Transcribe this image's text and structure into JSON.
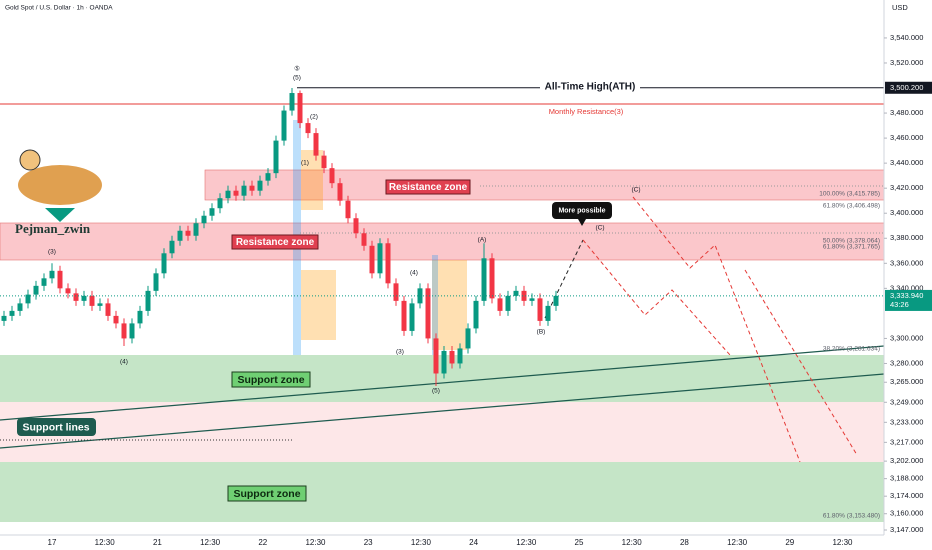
{
  "header": {
    "symbol": "Gold Spot / U.S. Dollar · 1h · OANDA",
    "currency": "USD"
  },
  "chart_data": {
    "type": "candlestick",
    "up_color": "#089981",
    "down_color": "#f23645",
    "grid": false,
    "candles": [
      [
        3314,
        3322,
        3310,
        3318
      ],
      [
        3318,
        3326,
        3314,
        3322
      ],
      [
        3322,
        3332,
        3318,
        3328
      ],
      [
        3328,
        3339,
        3324,
        3335
      ],
      [
        3335,
        3346,
        3331,
        3342
      ],
      [
        3342,
        3352,
        3338,
        3348
      ],
      [
        3348,
        3360,
        3344,
        3354
      ],
      [
        3354,
        3358,
        3336,
        3340
      ],
      [
        3340,
        3344,
        3332,
        3336
      ],
      [
        3336,
        3340,
        3326,
        3330
      ],
      [
        3330,
        3338,
        3326,
        3334
      ],
      [
        3334,
        3338,
        3322,
        3326
      ],
      [
        3326,
        3332,
        3322,
        3328
      ],
      [
        3328,
        3332,
        3314,
        3318
      ],
      [
        3318,
        3322,
        3308,
        3312
      ],
      [
        3312,
        3316,
        3294,
        3300
      ],
      [
        3300,
        3316,
        3296,
        3312
      ],
      [
        3312,
        3326,
        3308,
        3322
      ],
      [
        3322,
        3342,
        3318,
        3338
      ],
      [
        3338,
        3356,
        3334,
        3352
      ],
      [
        3352,
        3372,
        3348,
        3368
      ],
      [
        3368,
        3382,
        3364,
        3378
      ],
      [
        3378,
        3390,
        3374,
        3386
      ],
      [
        3386,
        3390,
        3378,
        3382
      ],
      [
        3382,
        3396,
        3378,
        3392
      ],
      [
        3392,
        3402,
        3388,
        3398
      ],
      [
        3398,
        3408,
        3394,
        3404
      ],
      [
        3404,
        3416,
        3400,
        3412
      ],
      [
        3412,
        3422,
        3408,
        3418
      ],
      [
        3418,
        3422,
        3410,
        3414
      ],
      [
        3414,
        3426,
        3410,
        3422
      ],
      [
        3422,
        3426,
        3414,
        3418
      ],
      [
        3418,
        3430,
        3414,
        3426
      ],
      [
        3426,
        3436,
        3422,
        3432
      ],
      [
        3432,
        3462,
        3428,
        3458
      ],
      [
        3458,
        3486,
        3454,
        3482
      ],
      [
        3482,
        3500,
        3478,
        3496
      ],
      [
        3496,
        3498,
        3468,
        3472
      ],
      [
        3472,
        3476,
        3460,
        3464
      ],
      [
        3464,
        3468,
        3442,
        3446
      ],
      [
        3446,
        3450,
        3432,
        3436
      ],
      [
        3436,
        3440,
        3420,
        3424
      ],
      [
        3424,
        3428,
        3406,
        3410
      ],
      [
        3410,
        3414,
        3392,
        3396
      ],
      [
        3396,
        3400,
        3380,
        3384
      ],
      [
        3384,
        3388,
        3370,
        3374
      ],
      [
        3374,
        3378,
        3348,
        3352
      ],
      [
        3352,
        3380,
        3348,
        3376
      ],
      [
        3376,
        3380,
        3340,
        3344
      ],
      [
        3344,
        3348,
        3326,
        3330
      ],
      [
        3330,
        3334,
        3302,
        3306
      ],
      [
        3306,
        3332,
        3302,
        3328
      ],
      [
        3328,
        3344,
        3324,
        3340
      ],
      [
        3340,
        3344,
        3296,
        3300
      ],
      [
        3300,
        3304,
        3262,
        3272
      ],
      [
        3272,
        3294,
        3268,
        3290
      ],
      [
        3290,
        3294,
        3276,
        3280
      ],
      [
        3280,
        3296,
        3276,
        3292
      ],
      [
        3292,
        3312,
        3288,
        3308
      ],
      [
        3308,
        3334,
        3304,
        3330
      ],
      [
        3330,
        3376,
        3326,
        3364
      ],
      [
        3364,
        3368,
        3328,
        3332
      ],
      [
        3332,
        3336,
        3318,
        3322
      ],
      [
        3322,
        3338,
        3318,
        3334
      ],
      [
        3334,
        3342,
        3330,
        3338
      ],
      [
        3338,
        3342,
        3326,
        3330
      ],
      [
        3330,
        3336,
        3326,
        3332
      ],
      [
        3332,
        3336,
        3310,
        3314
      ],
      [
        3314,
        3330,
        3310,
        3326
      ],
      [
        3326,
        3338,
        3322,
        3334
      ]
    ],
    "ylim": [
      3143,
      3570.3
    ],
    "yticks": [
      {
        "value": 3540,
        "label": "3,540.000"
      },
      {
        "value": 3520,
        "label": "3,520.000"
      },
      {
        "value": 3480,
        "label": "3,480.000"
      },
      {
        "value": 3460,
        "label": "3,460.000"
      },
      {
        "value": 3440,
        "label": "3,440.000"
      },
      {
        "value": 3420,
        "label": "3,420.000"
      },
      {
        "value": 3400,
        "label": "3,400.000"
      },
      {
        "value": 3380,
        "label": "3,380.000"
      },
      {
        "value": 3360,
        "label": "3,360.000"
      },
      {
        "value": 3340,
        "label": "3,340.000"
      },
      {
        "value": 3300,
        "label": "3,300.000"
      },
      {
        "value": 3280,
        "label": "3,280.000"
      },
      {
        "value": 3265,
        "label": "3,265.000"
      },
      {
        "value": 3249,
        "label": "3,249.000"
      },
      {
        "value": 3233,
        "label": "3,233.000"
      },
      {
        "value": 3217,
        "label": "3,217.000"
      },
      {
        "value": 3202,
        "label": "3,202.000"
      },
      {
        "value": 3188,
        "label": "3,188.000"
      },
      {
        "value": 3174,
        "label": "3,174.000"
      },
      {
        "value": 3160,
        "label": "3,160.000"
      },
      {
        "value": 3147,
        "label": "3,147.000"
      }
    ],
    "categories": [
      "17",
      "12:30",
      "21",
      "12:30",
      "22",
      "12:30",
      "23",
      "12:30",
      "24",
      "12:30",
      "25",
      "12:30",
      "28",
      "12:30",
      "29",
      "12:30"
    ],
    "ath": {
      "value": 3500.2,
      "label": "3,500.200"
    },
    "last_price": {
      "value": 3333.94,
      "label": "3,333.940"
    },
    "countdown": "43:26"
  },
  "annotations": {
    "ath": "All-Time High(ATH)",
    "monthly_resistance": "Monthly Resistance(3)",
    "resistance_zones": [
      "Resistance zone",
      "Resistance zone"
    ],
    "support_zones": [
      "Support zone",
      "Support zone"
    ],
    "support_lines": "Support lines",
    "more_possible": "More possible",
    "author": "Pejman_zwin",
    "waves": [
      "⑤",
      "(5)",
      "(2)",
      "(1)",
      "(3)",
      "(4)",
      "(3)",
      "(4)",
      "(5)",
      "(A)",
      "(B)",
      "(C)",
      "(C)"
    ],
    "fibs": [
      "100.00% (3,415.785)",
      "61.80% (3,406.498)",
      "50.00% (3,378.064)",
      "61.80% (3,371.765)",
      "38.20% (3,281.634)",
      "61.80% (3,153.480)"
    ]
  }
}
